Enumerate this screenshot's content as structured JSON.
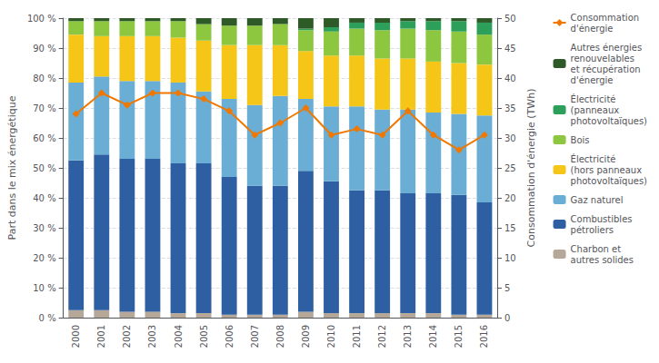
{
  "chart_data": {
    "type": "bar",
    "stacked": true,
    "categories": [
      "2000",
      "2001",
      "2002",
      "2003",
      "2004",
      "2005",
      "2006",
      "2007",
      "2008",
      "2009",
      "2010",
      "2011",
      "2012",
      "2013",
      "2014",
      "2015",
      "2016"
    ],
    "ylabel": "Part dans le mix énergétique",
    "y2label": "Consommation d'énergie (TWh)",
    "ylim": [
      0,
      100
    ],
    "yticks": [
      {
        "value": 0,
        "label": "0 %"
      },
      {
        "value": 10,
        "label": "10 %"
      },
      {
        "value": 20,
        "label": "20 %"
      },
      {
        "value": 30,
        "label": "30 %"
      },
      {
        "value": 40,
        "label": "40 %"
      },
      {
        "value": 50,
        "label": "50 %"
      },
      {
        "value": 60,
        "label": "60 %"
      },
      {
        "value": 70,
        "label": "70 %"
      },
      {
        "value": 80,
        "label": "80 %"
      },
      {
        "value": 90,
        "label": "90 %"
      },
      {
        "value": 100,
        "label": "100 %"
      }
    ],
    "y2lim": [
      0,
      50
    ],
    "y2ticks": [
      0,
      5,
      10,
      15,
      20,
      25,
      30,
      35,
      40,
      45,
      50
    ],
    "grid": true,
    "legend": "right",
    "series": [
      {
        "name": "Charbon et\nautres solides",
        "type": "bar",
        "color": "#b5a898",
        "values": [
          2.5,
          2.5,
          2.0,
          2.0,
          1.5,
          1.5,
          1.0,
          1.0,
          1.0,
          2.0,
          1.5,
          1.5,
          1.5,
          1.5,
          1.5,
          1.0,
          1.0
        ]
      },
      {
        "name": "Combustibles\npétroliers",
        "type": "bar",
        "color": "#2e5fa3",
        "values": [
          50.0,
          52.0,
          51.0,
          51.0,
          50.0,
          50.0,
          46.0,
          43.0,
          43.0,
          47.0,
          44.0,
          41.0,
          41.0,
          40.0,
          40.0,
          40.0,
          37.5
        ]
      },
      {
        "name": "Gaz naturel",
        "type": "bar",
        "color": "#6aaed6",
        "values": [
          26.0,
          26.0,
          26.0,
          26.0,
          27.0,
          24.0,
          26.0,
          27.0,
          30.0,
          24.0,
          25.0,
          28.0,
          27.0,
          28.0,
          27.0,
          27.0,
          29.0
        ]
      },
      {
        "name": "Électricité\n(hors panneaux\nphotovoltaïques)",
        "type": "bar",
        "color": "#f5c518",
        "values": [
          16.0,
          13.5,
          15.0,
          15.0,
          15.0,
          17.0,
          18.0,
          20.0,
          17.0,
          16.0,
          17.0,
          17.0,
          17.0,
          17.0,
          17.0,
          17.0,
          17.0
        ]
      },
      {
        "name": "Bois",
        "type": "bar",
        "color": "#8dc63f",
        "values": [
          4.5,
          5.0,
          5.0,
          5.0,
          5.5,
          5.5,
          6.5,
          6.5,
          7.0,
          7.0,
          8.0,
          9.0,
          9.5,
          10.0,
          10.5,
          10.5,
          10.0
        ]
      },
      {
        "name": "Électricité\n(panneaux\nphotovoltaïques)",
        "type": "bar",
        "color": "#2ca05a",
        "values": [
          0.0,
          0.0,
          0.0,
          0.0,
          0.0,
          0.0,
          0.0,
          0.0,
          0.0,
          0.5,
          1.5,
          2.0,
          2.5,
          2.5,
          3.0,
          3.5,
          4.0
        ]
      },
      {
        "name": "Autres énergies\nrenouvelables\net récupération\nd'énergie",
        "type": "bar",
        "color": "#2d5a27",
        "values": [
          1.0,
          1.0,
          1.0,
          1.0,
          1.0,
          2.0,
          2.5,
          2.5,
          2.0,
          3.5,
          3.0,
          1.5,
          1.5,
          1.0,
          1.0,
          1.0,
          1.5
        ]
      },
      {
        "name": "Consommation\nd'énergie",
        "type": "line",
        "axis": "y2",
        "marker": "diamond",
        "color": "#f07800",
        "values": [
          34.0,
          37.5,
          35.5,
          37.5,
          37.5,
          36.5,
          34.5,
          30.5,
          32.5,
          35.0,
          30.5,
          31.5,
          30.5,
          34.5,
          30.5,
          28.0,
          30.5
        ]
      }
    ]
  }
}
